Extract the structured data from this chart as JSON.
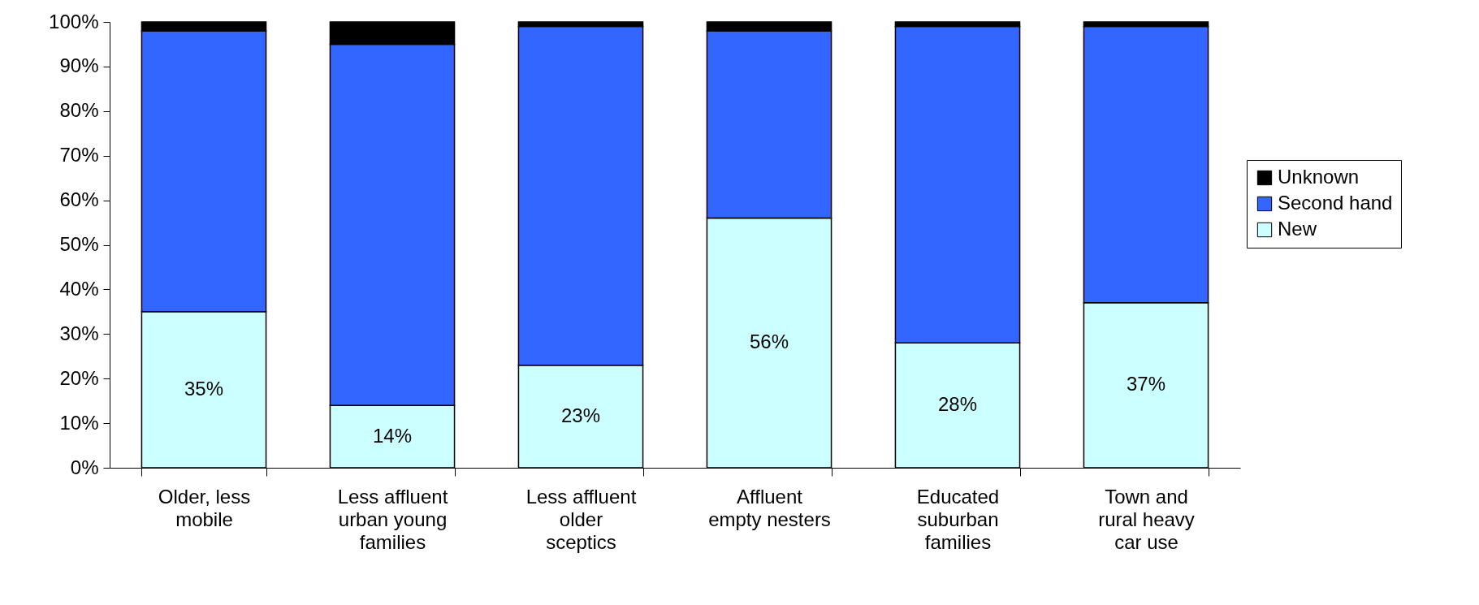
{
  "chart_data": {
    "type": "bar",
    "stacked": true,
    "categories": [
      "Older, less mobile",
      "Less affluent urban young families",
      "Less affluent older sceptics",
      "Affluent empty nesters",
      "Educated suburban families",
      "Town and rural heavy car use"
    ],
    "series": [
      {
        "name": "New",
        "color": "#ccffff",
        "values": [
          35,
          14,
          23,
          56,
          28,
          37
        ],
        "value_labels": [
          "35%",
          "14%",
          "23%",
          "56%",
          "28%",
          "37%"
        ]
      },
      {
        "name": "Second hand",
        "color": "#3366ff",
        "values": [
          63,
          81,
          76,
          42,
          71,
          62
        ]
      },
      {
        "name": "Unknown",
        "color": "#000000",
        "values": [
          2,
          5,
          1,
          2,
          1,
          1
        ]
      }
    ],
    "ylim": [
      0,
      100
    ],
    "yticks": [
      {
        "value": 0,
        "label": "0%"
      },
      {
        "value": 10,
        "label": "10%"
      },
      {
        "value": 20,
        "label": "20%"
      },
      {
        "value": 30,
        "label": "30%"
      },
      {
        "value": 40,
        "label": "40%"
      },
      {
        "value": 50,
        "label": "50%"
      },
      {
        "value": 60,
        "label": "60%"
      },
      {
        "value": 70,
        "label": "70%"
      },
      {
        "value": 80,
        "label": "80%"
      },
      {
        "value": 90,
        "label": "90%"
      },
      {
        "value": 100,
        "label": "100%"
      }
    ],
    "grid": false,
    "legend": "right"
  }
}
